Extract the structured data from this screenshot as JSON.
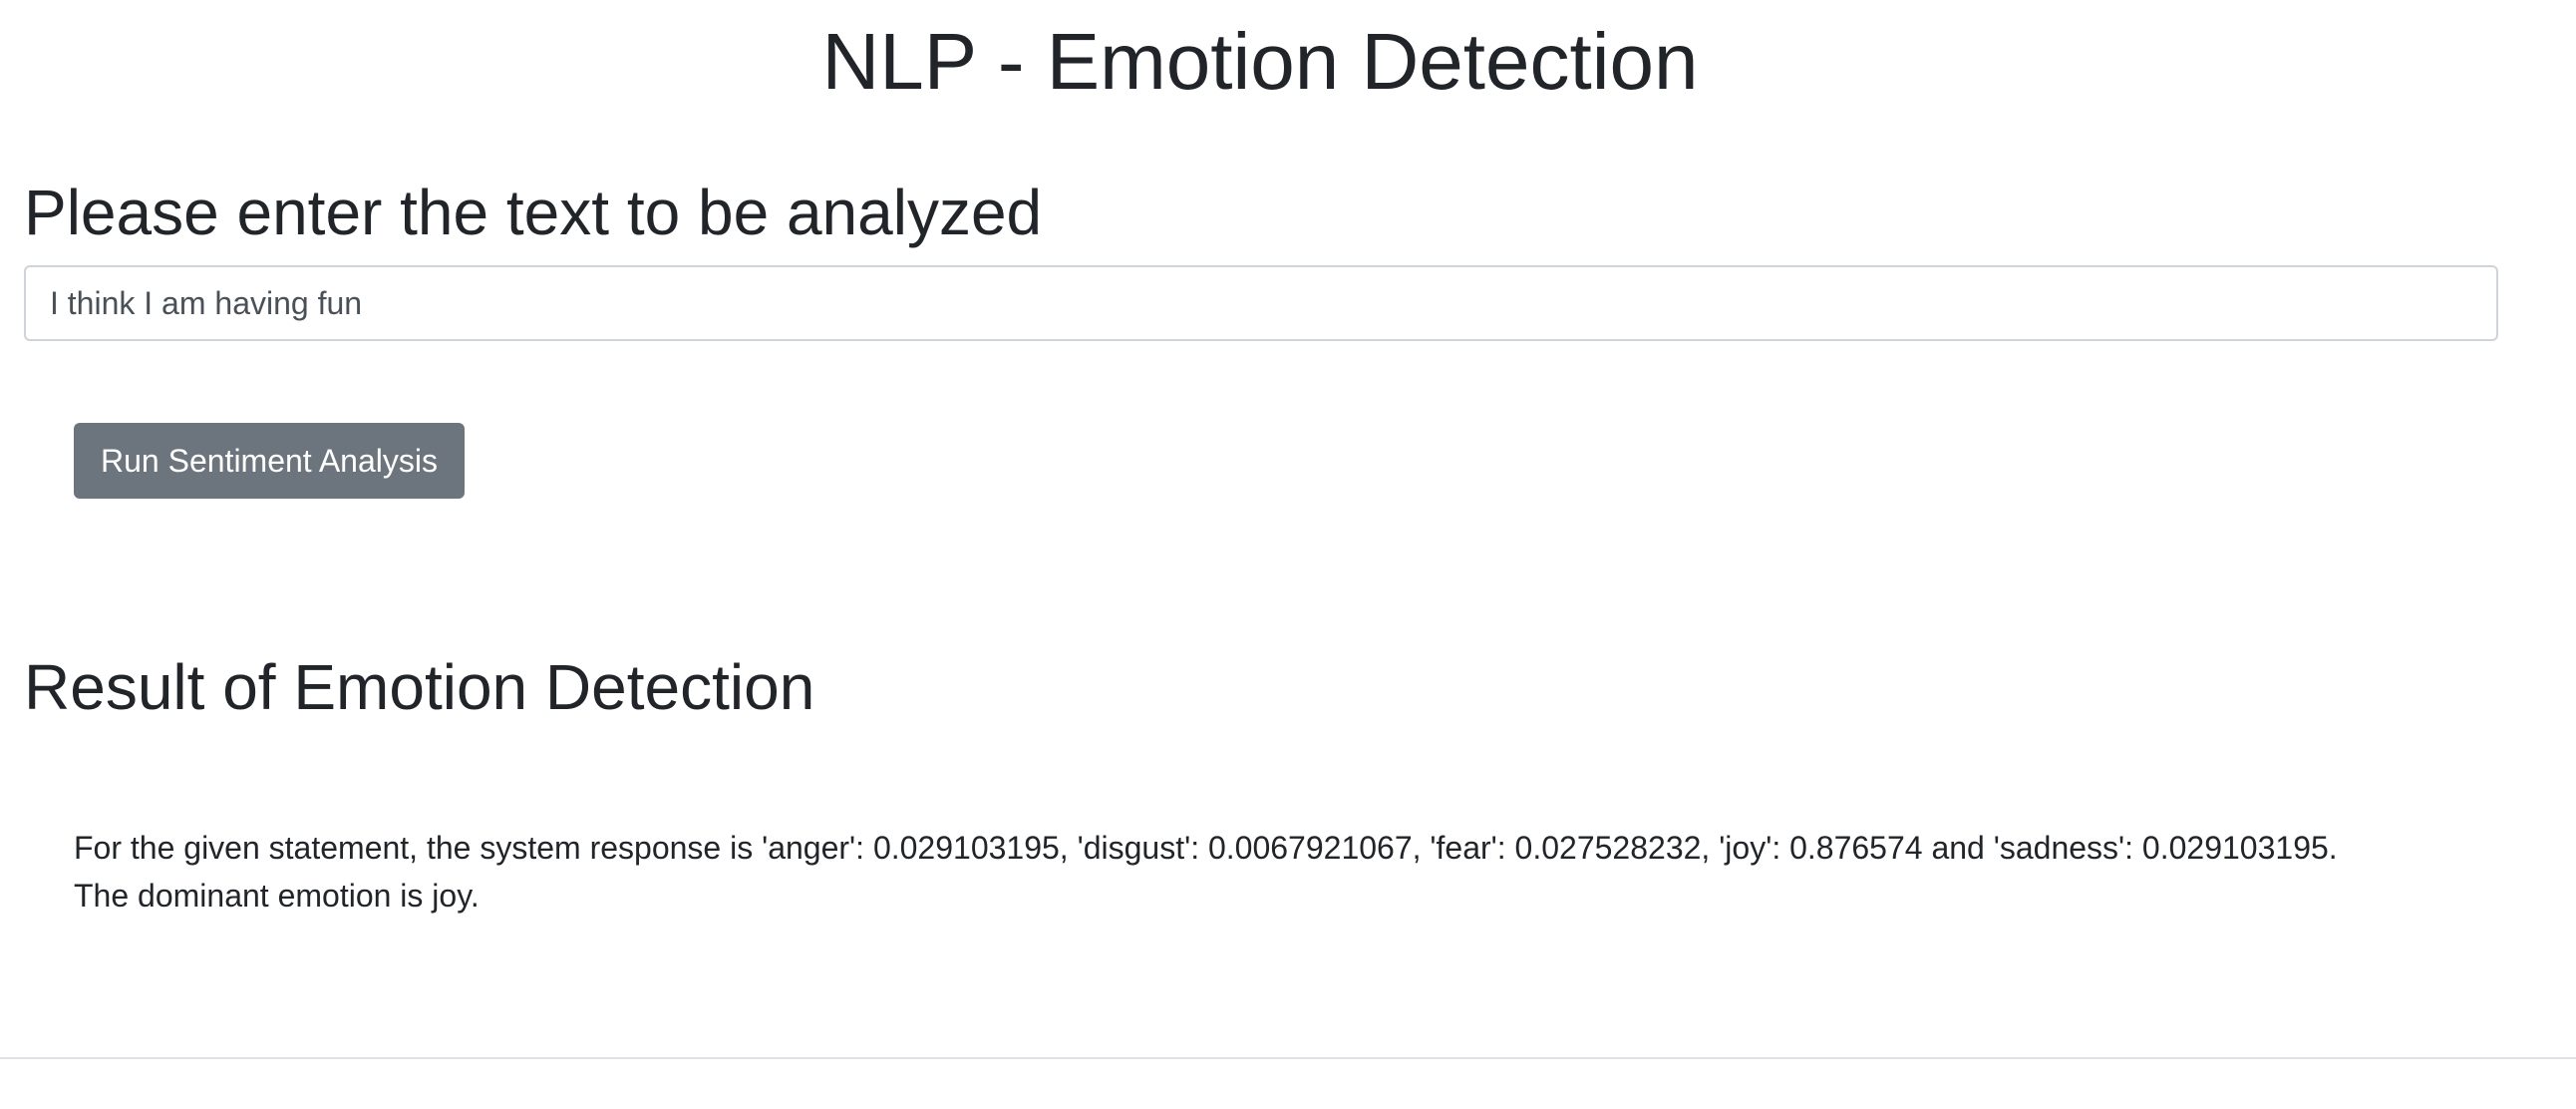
{
  "header": {
    "title": "NLP - Emotion Detection"
  },
  "input_section": {
    "heading": "Please enter the text to be analyzed",
    "text_value": "I think I am having fun"
  },
  "actions": {
    "run_label": "Run Sentiment Analysis"
  },
  "result_section": {
    "heading": "Result of Emotion Detection",
    "line1": "For the given statement, the system response is 'anger': 0.029103195, 'disgust': 0.0067921067, 'fear': 0.027528232, 'joy': 0.876574 and 'sadness': 0.029103195.",
    "line2": "The dominant emotion is joy."
  },
  "colors": {
    "button_bg": "#6c757d",
    "text": "#212529",
    "input_border": "#ced4da"
  }
}
